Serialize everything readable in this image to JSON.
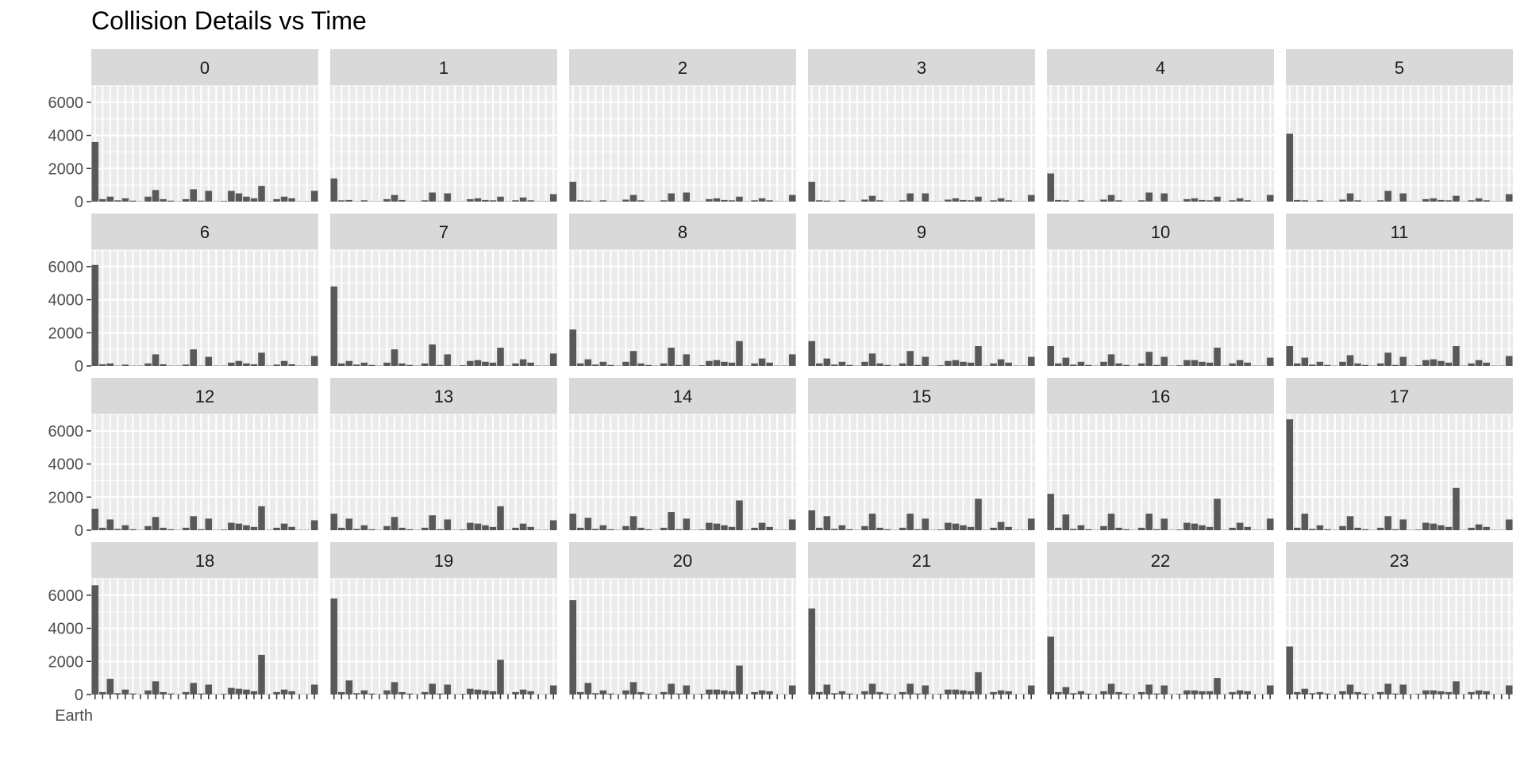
{
  "chart_data": {
    "type": "bar",
    "title": "Collision Details vs Time",
    "xlabel": "",
    "ylabel": "",
    "ylim": [
      0,
      7000
    ],
    "y_ticks": [
      0,
      2000,
      4000,
      6000
    ],
    "y_tick_labels": [
      "0",
      "2000",
      "4000",
      "6000"
    ],
    "grid": true,
    "facet_layout": {
      "rows": 4,
      "cols": 6
    },
    "x_first_category_label": "Earth",
    "categories_count": 30,
    "facets": [
      {
        "label": "0",
        "values": [
          3600,
          150,
          300,
          80,
          200,
          60,
          20,
          300,
          700,
          150,
          60,
          20,
          150,
          750,
          60,
          650,
          20,
          40,
          650,
          500,
          300,
          200,
          950,
          20,
          150,
          300,
          200,
          20,
          20,
          650
        ]
      },
      {
        "label": "1",
        "values": [
          1400,
          80,
          100,
          20,
          80,
          20,
          20,
          150,
          400,
          100,
          20,
          20,
          80,
          550,
          20,
          500,
          20,
          20,
          150,
          200,
          100,
          80,
          300,
          20,
          80,
          250,
          80,
          20,
          20,
          450
        ]
      },
      {
        "label": "2",
        "values": [
          1200,
          80,
          60,
          20,
          80,
          20,
          20,
          120,
          400,
          80,
          20,
          20,
          80,
          500,
          20,
          550,
          20,
          20,
          150,
          200,
          100,
          80,
          300,
          20,
          80,
          200,
          80,
          20,
          20,
          400
        ]
      },
      {
        "label": "3",
        "values": [
          1200,
          80,
          60,
          20,
          80,
          20,
          20,
          120,
          350,
          80,
          20,
          20,
          80,
          500,
          20,
          500,
          20,
          20,
          120,
          200,
          100,
          80,
          300,
          20,
          80,
          200,
          80,
          20,
          20,
          400
        ]
      },
      {
        "label": "4",
        "values": [
          1700,
          100,
          80,
          20,
          80,
          20,
          20,
          120,
          400,
          80,
          20,
          20,
          80,
          550,
          20,
          500,
          20,
          20,
          150,
          200,
          100,
          80,
          300,
          20,
          80,
          200,
          80,
          20,
          20,
          400
        ]
      },
      {
        "label": "5",
        "values": [
          4100,
          100,
          80,
          20,
          80,
          20,
          20,
          120,
          500,
          80,
          20,
          20,
          80,
          650,
          20,
          500,
          20,
          20,
          150,
          200,
          100,
          80,
          350,
          20,
          80,
          200,
          80,
          20,
          20,
          450
        ]
      },
      {
        "label": "6",
        "values": [
          6100,
          100,
          150,
          20,
          80,
          20,
          20,
          150,
          700,
          100,
          20,
          20,
          80,
          1000,
          20,
          550,
          20,
          20,
          200,
          300,
          150,
          100,
          800,
          20,
          80,
          300,
          100,
          20,
          20,
          600
        ]
      },
      {
        "label": "7",
        "values": [
          4800,
          150,
          300,
          80,
          200,
          60,
          20,
          200,
          1000,
          150,
          60,
          20,
          150,
          1300,
          60,
          700,
          20,
          40,
          300,
          350,
          250,
          200,
          1100,
          20,
          150,
          400,
          200,
          20,
          20,
          750
        ]
      },
      {
        "label": "8",
        "values": [
          2200,
          150,
          400,
          80,
          250,
          60,
          20,
          250,
          900,
          150,
          60,
          20,
          150,
          1100,
          60,
          700,
          20,
          40,
          300,
          350,
          250,
          200,
          1500,
          20,
          150,
          450,
          200,
          20,
          20,
          700
        ]
      },
      {
        "label": "9",
        "values": [
          1500,
          150,
          450,
          80,
          250,
          60,
          20,
          250,
          750,
          150,
          60,
          20,
          150,
          900,
          60,
          550,
          20,
          40,
          300,
          350,
          250,
          200,
          1200,
          20,
          150,
          400,
          200,
          20,
          20,
          550
        ]
      },
      {
        "label": "10",
        "values": [
          1200,
          150,
          500,
          80,
          250,
          60,
          20,
          250,
          700,
          150,
          60,
          20,
          150,
          850,
          60,
          550,
          20,
          40,
          350,
          350,
          250,
          200,
          1100,
          20,
          150,
          350,
          200,
          20,
          20,
          500
        ]
      },
      {
        "label": "11",
        "values": [
          1200,
          150,
          500,
          80,
          250,
          60,
          20,
          250,
          650,
          150,
          60,
          20,
          150,
          800,
          60,
          550,
          20,
          40,
          350,
          400,
          300,
          200,
          1200,
          20,
          150,
          350,
          200,
          20,
          20,
          600
        ]
      },
      {
        "label": "12",
        "values": [
          1300,
          150,
          650,
          80,
          300,
          60,
          20,
          250,
          800,
          150,
          60,
          20,
          150,
          850,
          60,
          700,
          20,
          40,
          450,
          400,
          300,
          200,
          1450,
          20,
          150,
          400,
          200,
          20,
          20,
          600
        ]
      },
      {
        "label": "13",
        "values": [
          1000,
          150,
          700,
          80,
          300,
          60,
          20,
          250,
          800,
          150,
          60,
          20,
          150,
          900,
          60,
          650,
          20,
          40,
          450,
          400,
          300,
          200,
          1450,
          20,
          150,
          400,
          200,
          20,
          20,
          600
        ]
      },
      {
        "label": "14",
        "values": [
          1000,
          150,
          750,
          80,
          300,
          60,
          20,
          250,
          850,
          150,
          60,
          20,
          150,
          1100,
          60,
          700,
          20,
          40,
          450,
          400,
          300,
          200,
          1800,
          20,
          150,
          450,
          200,
          20,
          20,
          650
        ]
      },
      {
        "label": "15",
        "values": [
          1200,
          150,
          850,
          80,
          300,
          60,
          20,
          250,
          1000,
          150,
          60,
          20,
          150,
          1000,
          60,
          700,
          20,
          40,
          450,
          400,
          300,
          200,
          1900,
          20,
          150,
          500,
          200,
          20,
          20,
          700
        ]
      },
      {
        "label": "16",
        "values": [
          2200,
          150,
          950,
          80,
          300,
          60,
          20,
          250,
          1000,
          150,
          60,
          20,
          150,
          1000,
          60,
          700,
          20,
          40,
          450,
          400,
          300,
          200,
          1900,
          20,
          150,
          450,
          200,
          20,
          20,
          700
        ]
      },
      {
        "label": "17",
        "values": [
          6700,
          150,
          1000,
          80,
          300,
          60,
          20,
          250,
          850,
          150,
          60,
          20,
          150,
          850,
          60,
          650,
          20,
          40,
          450,
          400,
          300,
          200,
          2550,
          20,
          150,
          350,
          200,
          20,
          20,
          650
        ]
      },
      {
        "label": "18",
        "values": [
          6600,
          150,
          950,
          80,
          300,
          60,
          20,
          250,
          800,
          150,
          60,
          20,
          150,
          700,
          60,
          600,
          20,
          40,
          400,
          350,
          300,
          200,
          2400,
          20,
          150,
          300,
          200,
          20,
          20,
          600
        ]
      },
      {
        "label": "19",
        "values": [
          5800,
          150,
          850,
          80,
          250,
          60,
          20,
          250,
          750,
          150,
          60,
          20,
          150,
          650,
          60,
          600,
          20,
          40,
          350,
          300,
          250,
          200,
          2100,
          20,
          150,
          300,
          200,
          20,
          20,
          550
        ]
      },
      {
        "label": "20",
        "values": [
          5700,
          150,
          700,
          80,
          250,
          60,
          20,
          250,
          750,
          150,
          60,
          20,
          150,
          650,
          60,
          550,
          20,
          40,
          300,
          300,
          250,
          200,
          1750,
          20,
          150,
          250,
          200,
          20,
          20,
          550
        ]
      },
      {
        "label": "21",
        "values": [
          5200,
          150,
          600,
          80,
          200,
          60,
          20,
          200,
          650,
          150,
          60,
          20,
          150,
          650,
          60,
          550,
          20,
          40,
          300,
          300,
          250,
          200,
          1350,
          20,
          150,
          250,
          200,
          20,
          20,
          550
        ]
      },
      {
        "label": "22",
        "values": [
          3500,
          150,
          450,
          80,
          200,
          60,
          20,
          200,
          650,
          150,
          60,
          20,
          150,
          600,
          60,
          550,
          20,
          40,
          250,
          250,
          200,
          200,
          1000,
          20,
          150,
          250,
          200,
          20,
          20,
          550
        ]
      },
      {
        "label": "23",
        "values": [
          2900,
          150,
          350,
          80,
          150,
          60,
          20,
          200,
          600,
          150,
          60,
          20,
          150,
          650,
          60,
          600,
          20,
          40,
          250,
          250,
          200,
          150,
          800,
          20,
          150,
          250,
          200,
          20,
          20,
          550
        ]
      }
    ]
  },
  "colors": {
    "panel_bg": "#ebebeb",
    "grid": "#ffffff",
    "strip_bg": "#d9d9d9",
    "bar": "#595959",
    "tick": "#333333"
  }
}
